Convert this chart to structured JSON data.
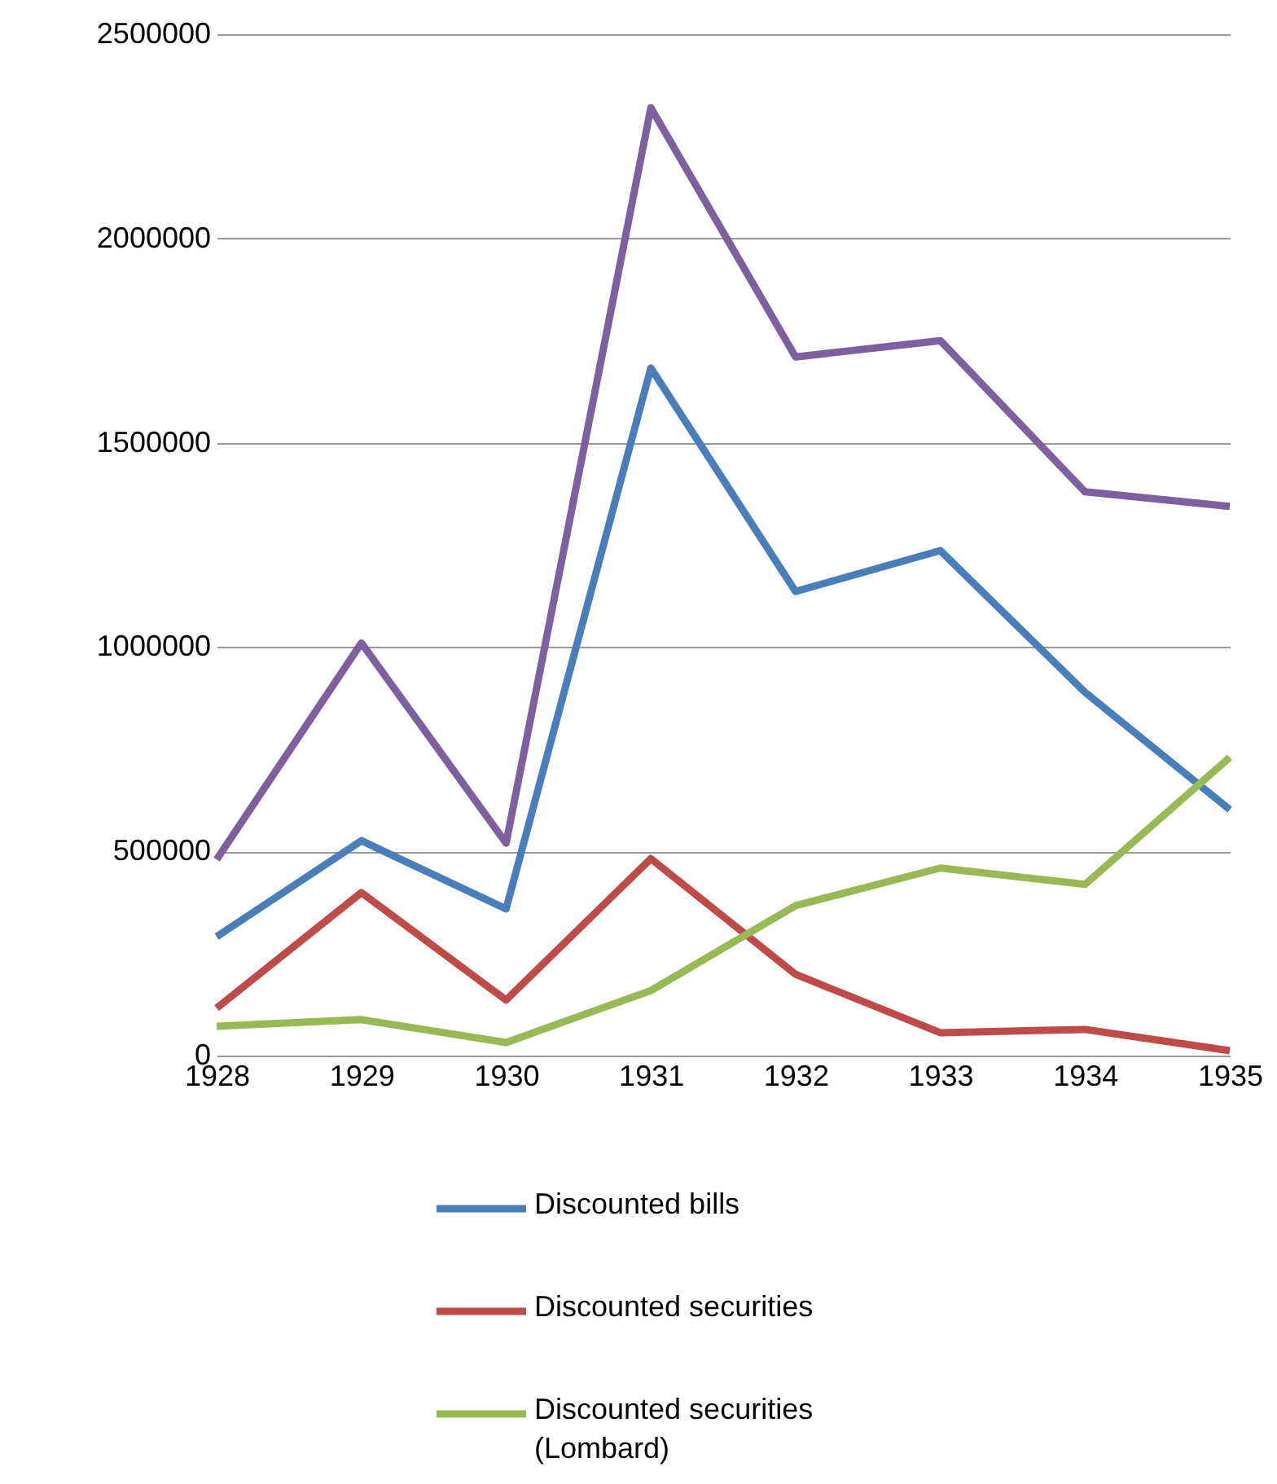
{
  "chart_data": {
    "type": "line",
    "categories": [
      "1928",
      "1929",
      "1930",
      "1931",
      "1932",
      "1933",
      "1934",
      "1935"
    ],
    "series": [
      {
        "name": "Discounted bills",
        "color": "#4a7ebb",
        "values": [
          291000,
          526000,
          359000,
          1683000,
          1136000,
          1236000,
          889000,
          602000
        ]
      },
      {
        "name": "Discounted securities",
        "color": "#be4b48",
        "values": [
          116000,
          399000,
          136000,
          482000,
          199000,
          56000,
          64000,
          12000
        ]
      },
      {
        "name": "Discounted securities\n(Lombard)",
        "color": "#98b954",
        "values": [
          72000,
          88000,
          32000,
          159000,
          367000,
          459000,
          419000,
          730000
        ]
      },
      {
        "color": "#7d60a0",
        "values": [
          480000,
          1010000,
          520000,
          2320000,
          1710000,
          1750000,
          1380000,
          1344000
        ]
      }
    ],
    "ylim": [
      0,
      2500000
    ],
    "yticks": [
      0,
      500000,
      1000000,
      1500000,
      2000000,
      2500000
    ],
    "grid": "y",
    "legend": "bottom",
    "marker": "none",
    "line_style": "solid"
  }
}
